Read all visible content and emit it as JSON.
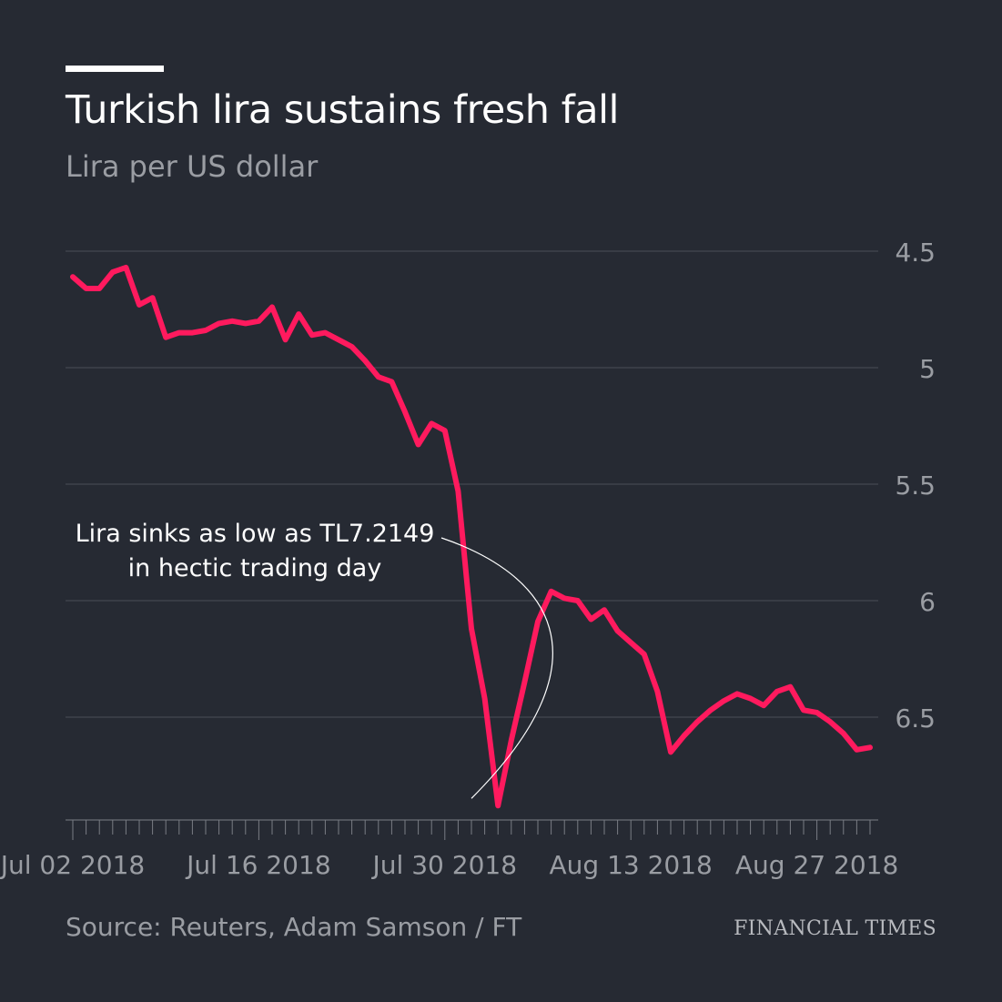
{
  "header": {
    "title": "Turkish lira sustains fresh fall",
    "subtitle": "Lira per US dollar"
  },
  "footer": {
    "source": "Source: Reuters, Adam Samson / FT",
    "brand": "FINANCIAL TIMES"
  },
  "colors": {
    "background": "#262a33",
    "line": "#ff1a5e",
    "grid": "#4a4e57",
    "muted": "#9a9da3",
    "text": "#ffffff"
  },
  "chart_data": {
    "type": "line",
    "title": "Turkish lira sustains fresh fall",
    "subtitle": "Lira per US dollar",
    "xlabel": "",
    "ylabel": "Lira per US dollar",
    "y_inverted": true,
    "ylim": [
      4.5,
      6.95
    ],
    "y_ticks": [
      4.5,
      5,
      5.5,
      6,
      6.5
    ],
    "y_tick_labels": [
      "4.5",
      "5",
      "5.5",
      "6",
      "6.5"
    ],
    "x_tick_labels": [
      "Jul 02 2018",
      "Jul 16 2018",
      "Jul 30 2018",
      "Aug 13 2018",
      "Aug 27 2018"
    ],
    "x_tick_label_days": [
      0,
      14,
      28,
      42,
      56
    ],
    "x_minor_tick_days": [
      0,
      1,
      2,
      3,
      4,
      5,
      6,
      7,
      8,
      9,
      10,
      11,
      12,
      13,
      14,
      15,
      16,
      17,
      18,
      19,
      20,
      21,
      22,
      23,
      24,
      25,
      26,
      27,
      28,
      29,
      30,
      31,
      32,
      33,
      34,
      35,
      36,
      37,
      38,
      39,
      40,
      41,
      42,
      43,
      44,
      45,
      46,
      47,
      48,
      49,
      50,
      51,
      52,
      53,
      54,
      55,
      56,
      57,
      58,
      59,
      60
    ],
    "grid": true,
    "legend": "none",
    "series": [
      {
        "name": "Lira per US dollar",
        "x": [
          0,
          1,
          2,
          3,
          4,
          5,
          6,
          7,
          8,
          9,
          10,
          11,
          12,
          13,
          14,
          15,
          16,
          17,
          18,
          19,
          20,
          21,
          22,
          23,
          24,
          25,
          26,
          27,
          28,
          29,
          30,
          31,
          32,
          33,
          34,
          35,
          36,
          37,
          38,
          39,
          40,
          41,
          42,
          43,
          44,
          45,
          46,
          47,
          48,
          49,
          50,
          51,
          52,
          53,
          54,
          55,
          56,
          57,
          58,
          59,
          60
        ],
        "values": [
          4.61,
          4.66,
          4.66,
          4.59,
          4.57,
          4.73,
          4.7,
          4.87,
          4.85,
          4.85,
          4.84,
          4.81,
          4.8,
          4.81,
          4.8,
          4.74,
          4.88,
          4.77,
          4.86,
          4.85,
          4.88,
          4.91,
          4.97,
          5.04,
          5.06,
          5.19,
          5.33,
          5.24,
          5.27,
          5.53,
          6.12,
          6.42,
          6.88,
          6.6,
          6.35,
          6.09,
          5.96,
          5.99,
          6.0,
          6.08,
          6.04,
          6.13,
          6.18,
          6.23,
          6.39,
          6.65,
          6.58,
          6.52,
          6.47,
          6.43,
          6.4,
          6.42,
          6.45,
          6.39,
          6.37,
          6.47,
          6.48,
          6.52,
          6.57,
          6.64,
          6.63
        ],
        "color": "#ff1a5e"
      }
    ],
    "annotations": [
      {
        "text_lines": [
          "Lira sinks as low as TL7.2149",
          "in hectic trading day"
        ],
        "target_x": 30,
        "target_y": 6.88
      }
    ]
  }
}
